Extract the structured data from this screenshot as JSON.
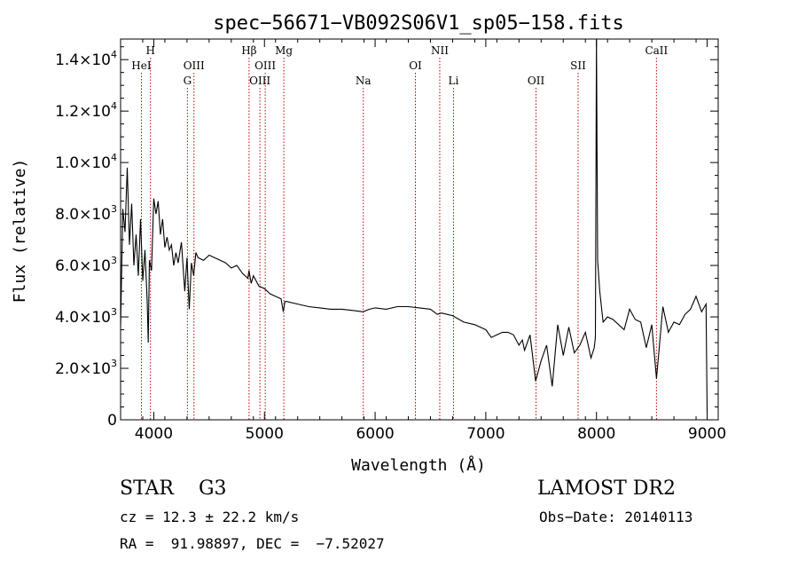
{
  "chart_data": {
    "type": "line",
    "title": "spec−56671−VB092S06V1_sp05−158.fits",
    "xlabel": "Wavelength (Å)",
    "ylabel": "Flux (relative)",
    "xlim": [
      3700,
      9100
    ],
    "ylim": [
      0,
      14800
    ],
    "x_ticks": [
      4000,
      5000,
      6000,
      7000,
      8000,
      9000
    ],
    "x_tick_labels": [
      "4000",
      "5000",
      "6000",
      "7000",
      "8000",
      "9000"
    ],
    "y_ticks": [
      0,
      2000,
      4000,
      6000,
      8000,
      10000,
      12000,
      14000
    ],
    "y_tick_labels": [
      {
        "base": "0",
        "exp": ""
      },
      {
        "base": "2.0×10",
        "exp": "3"
      },
      {
        "base": "4.0×10",
        "exp": "3"
      },
      {
        "base": "6.0×10",
        "exp": "3"
      },
      {
        "base": "8.0×10",
        "exp": "3"
      },
      {
        "base": "1.0×10",
        "exp": "4"
      },
      {
        "base": "1.2×10",
        "exp": "4"
      },
      {
        "base": "1.4×10",
        "exp": "4"
      }
    ],
    "grid": false,
    "series": [
      {
        "color": "#000000",
        "x": [
          3700,
          3720,
          3740,
          3760,
          3780,
          3800,
          3820,
          3840,
          3860,
          3880,
          3900,
          3920,
          3940,
          3950,
          3960,
          3980,
          4000,
          4020,
          4040,
          4060,
          4080,
          4100,
          4120,
          4140,
          4160,
          4180,
          4200,
          4220,
          4250,
          4280,
          4300,
          4320,
          4340,
          4360,
          4380,
          4400,
          4450,
          4500,
          4550,
          4600,
          4650,
          4700,
          4750,
          4800,
          4850,
          4860,
          4880,
          4900,
          4950,
          5000,
          5050,
          5100,
          5150,
          5170,
          5185,
          5200,
          5300,
          5400,
          5500,
          5600,
          5700,
          5800,
          5890,
          5950,
          6000,
          6100,
          6200,
          6300,
          6400,
          6500,
          6562,
          6600,
          6700,
          6800,
          6900,
          7000,
          7050,
          7100,
          7150,
          7200,
          7250,
          7300,
          7330,
          7350,
          7400,
          7450,
          7500,
          7550,
          7600,
          7650,
          7700,
          7750,
          7800,
          7850,
          7900,
          7950,
          7980,
          7990,
          8000,
          8010,
          8030,
          8060,
          8100,
          8150,
          8200,
          8250,
          8300,
          8350,
          8400,
          8450,
          8500,
          8542,
          8600,
          8650,
          8700,
          8750,
          8800,
          8850,
          8900,
          8950,
          8990,
          9000
        ],
        "y": [
          3600,
          8200,
          7300,
          9800,
          6800,
          8400,
          6000,
          7200,
          5600,
          7800,
          5400,
          6600,
          4600,
          3000,
          6200,
          5800,
          8600,
          8000,
          8500,
          7200,
          7800,
          6700,
          7100,
          6600,
          6800,
          6000,
          6500,
          6100,
          6900,
          5000,
          6300,
          4300,
          6100,
          5600,
          6500,
          6300,
          6200,
          6400,
          6300,
          6200,
          6100,
          5900,
          6000,
          5700,
          5500,
          5800,
          5300,
          5600,
          5200,
          5100,
          4900,
          4800,
          4700,
          4200,
          4600,
          4600,
          4500,
          4400,
          4350,
          4300,
          4300,
          4250,
          4200,
          4300,
          4350,
          4300,
          4400,
          4400,
          4350,
          4300,
          4100,
          4150,
          4050,
          3800,
          3700,
          3500,
          3200,
          3300,
          3400,
          3400,
          3300,
          2900,
          3100,
          2700,
          3300,
          1500,
          2300,
          2900,
          1300,
          3700,
          2500,
          3600,
          2600,
          2900,
          3400,
          2400,
          2800,
          3200,
          14800,
          6200,
          5000,
          3800,
          4000,
          3900,
          3700,
          3500,
          4300,
          3900,
          3800,
          2800,
          3700,
          1600,
          4400,
          3400,
          3800,
          3700,
          4100,
          4300,
          4800,
          4200,
          4500,
          300
        ]
      }
    ],
    "line_ids": [
      {
        "label": "HeI",
        "x": 3888,
        "row": 2,
        "html": "HeI"
      },
      {
        "label": "H",
        "x": 3970,
        "row": 1,
        "html": "H"
      },
      {
        "label": "G",
        "x": 4304,
        "row": 3,
        "html": "G"
      },
      {
        "label": "OIII",
        "x": 4363,
        "row": 2,
        "html": "OIII"
      },
      {
        "label": "Hβ",
        "x": 4861,
        "row": 1,
        "html": "Hβ"
      },
      {
        "label": "OIII",
        "x": 4959,
        "row": 3,
        "html": "OIII"
      },
      {
        "label": "OIII",
        "x": 5007,
        "row": 2,
        "html": "OIII"
      },
      {
        "label": "Mg",
        "x": 5175,
        "row": 1,
        "html": "Mg"
      },
      {
        "label": "Na",
        "x": 5893,
        "row": 3,
        "html": "Na"
      },
      {
        "label": "OI",
        "x": 6364,
        "row": 2,
        "html": "OI"
      },
      {
        "label": "NII",
        "x": 6584,
        "row": 1,
        "html": "NII"
      },
      {
        "label": "Li",
        "x": 6708,
        "row": 3,
        "html": "Li"
      },
      {
        "label": "OII",
        "x": 7454,
        "row": 3,
        "html": "OII"
      },
      {
        "label": "SII",
        "x": 7834,
        "row": 2,
        "html": "SII"
      },
      {
        "label": "CaII",
        "x": 8542,
        "row": 1,
        "html": "CaII"
      }
    ],
    "line_id_color": "#c00000"
  },
  "info": {
    "class_label": "STAR",
    "subclass": "G3",
    "survey": "LAMOST DR2",
    "cz": "cz = 12.3 ± 22.2 km/s",
    "obs_date": "Obs−Date: 20140113",
    "radec": "RA =  91.98897, DEC =  −7.52027"
  }
}
